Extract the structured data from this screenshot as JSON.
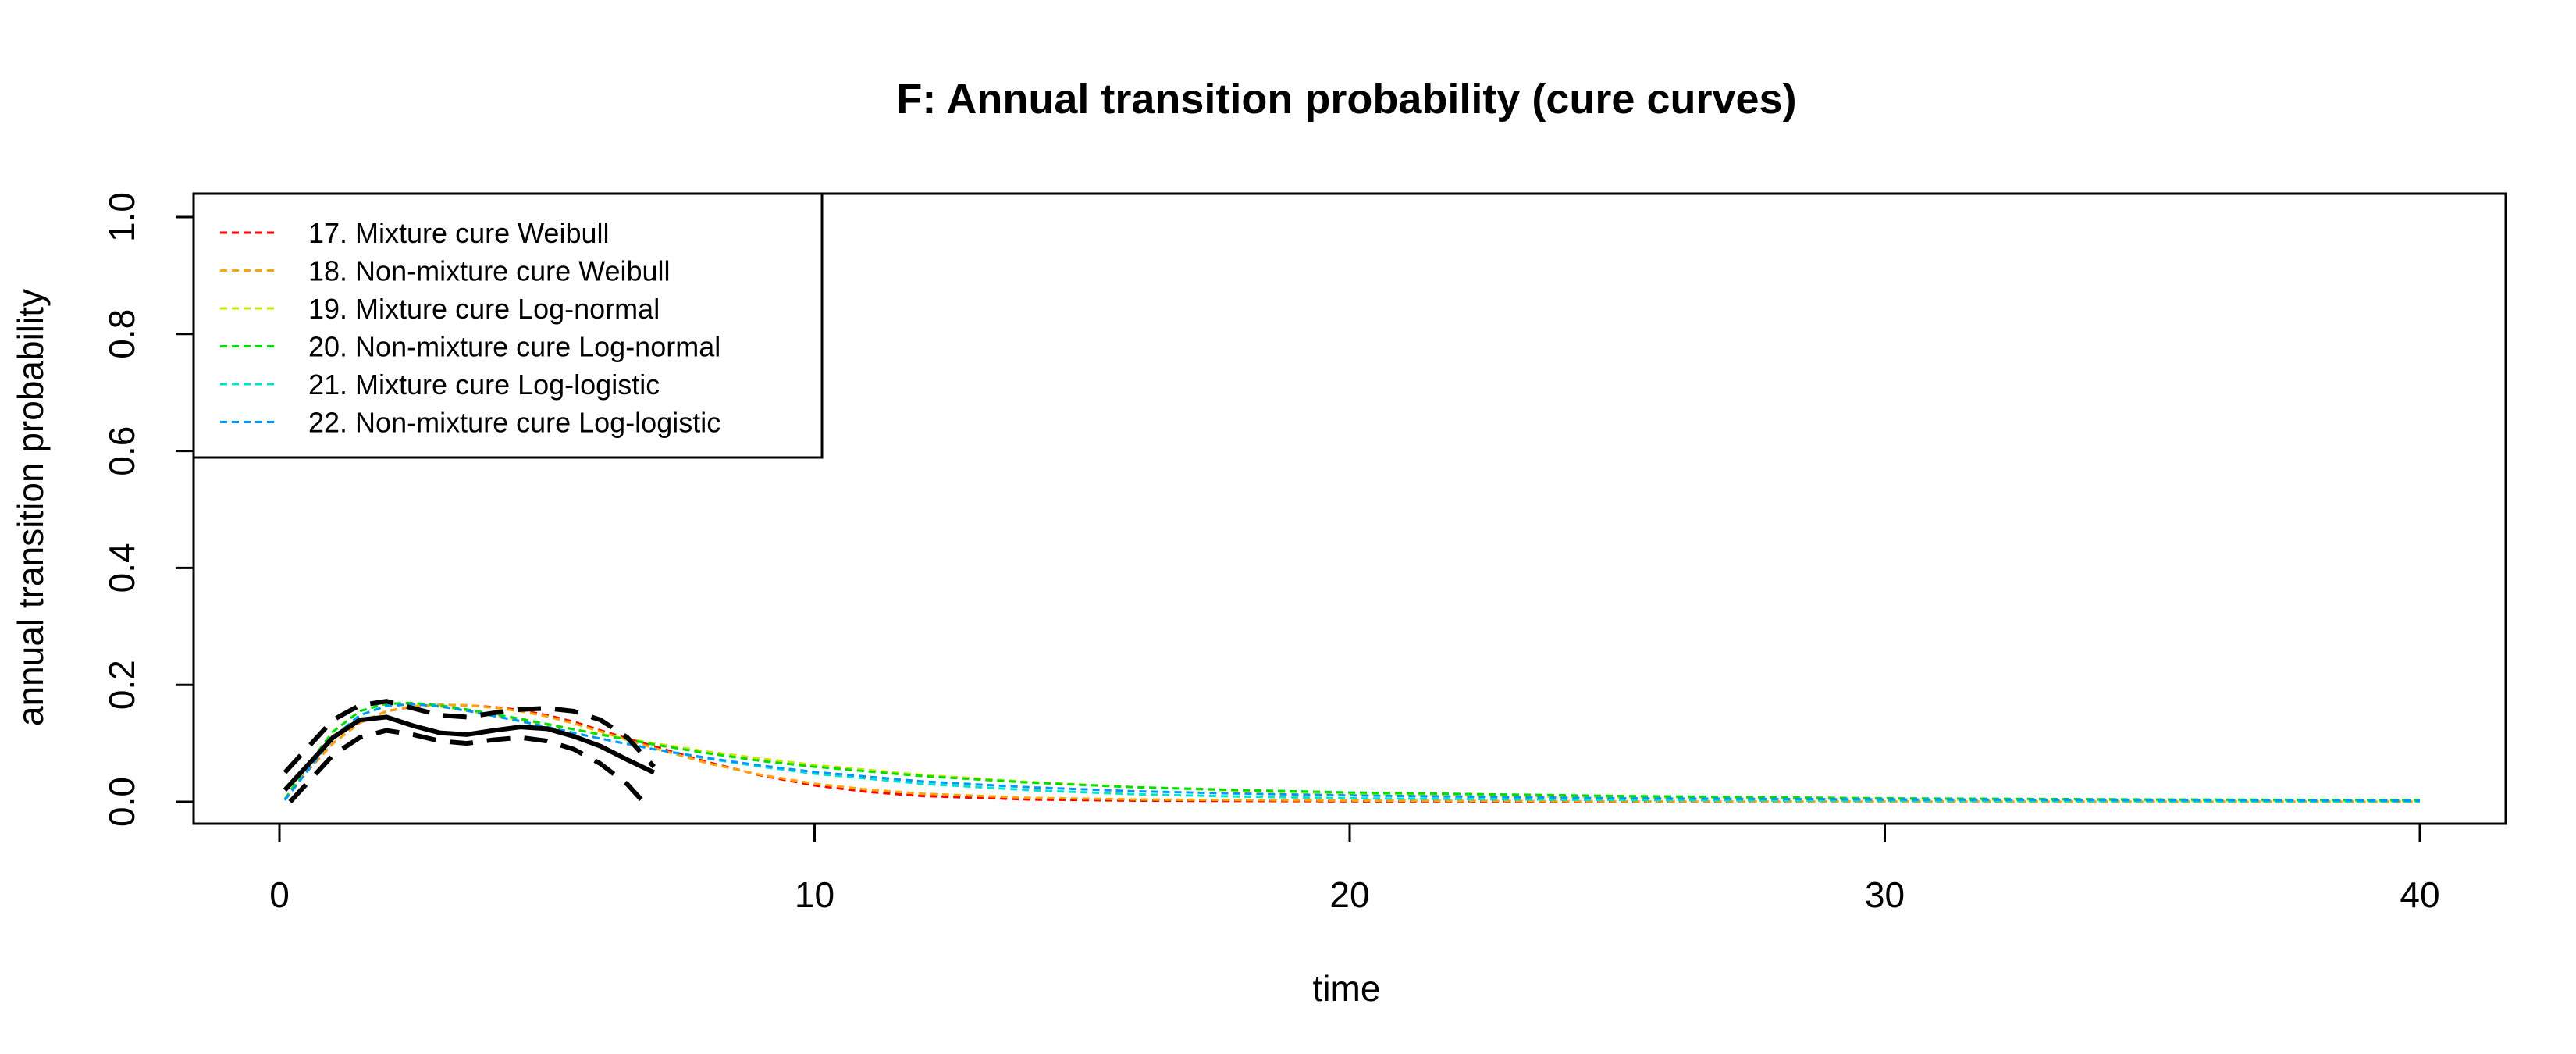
{
  "chart_data": {
    "type": "line",
    "title": "F: Annual transition probability (cure curves)",
    "xlabel": "time",
    "ylabel": "annual transition probability",
    "xlim": [
      0,
      40
    ],
    "ylim": [
      0,
      1
    ],
    "x_ticks": [
      "0",
      "10",
      "20",
      "30",
      "40"
    ],
    "y_ticks": [
      "0.0",
      "0.2",
      "0.4",
      "0.6",
      "0.8",
      "1.0"
    ],
    "legend_position": "top-left",
    "series": [
      {
        "name": "17. Mixture cure Weibull",
        "color": "#FF0000",
        "x": [
          0.1,
          0.5,
          1,
          1.5,
          2,
          2.5,
          3,
          3.5,
          4,
          4.5,
          5,
          5.5,
          6,
          7,
          8,
          9,
          10,
          11,
          12,
          14,
          16,
          20,
          25,
          30,
          35,
          40
        ],
        "y": [
          0.005,
          0.05,
          0.1,
          0.135,
          0.155,
          0.163,
          0.166,
          0.165,
          0.162,
          0.157,
          0.148,
          0.137,
          0.122,
          0.095,
          0.068,
          0.045,
          0.028,
          0.017,
          0.01,
          0.004,
          0.002,
          0.001,
          0.0005,
          0.0003,
          0.0002,
          0.0001
        ]
      },
      {
        "name": "18. Non-mixture cure Weibull",
        "color": "#FFA500",
        "x": [
          0.1,
          0.5,
          1,
          1.5,
          2,
          2.5,
          3,
          3.5,
          4,
          4.5,
          5,
          5.5,
          6,
          7,
          8,
          9,
          10,
          11,
          12,
          14,
          16,
          20,
          25,
          30,
          35,
          40
        ],
        "y": [
          0.005,
          0.05,
          0.1,
          0.135,
          0.155,
          0.164,
          0.166,
          0.165,
          0.161,
          0.155,
          0.146,
          0.134,
          0.12,
          0.092,
          0.066,
          0.046,
          0.031,
          0.021,
          0.014,
          0.007,
          0.004,
          0.002,
          0.001,
          0.0005,
          0.0003,
          0.0002
        ]
      },
      {
        "name": "19. Mixture cure Log-normal",
        "color": "#C8E600",
        "x": [
          0.1,
          0.5,
          1,
          1.5,
          2,
          2.5,
          3,
          3.5,
          4,
          4.5,
          5,
          5.5,
          6,
          7,
          8,
          9,
          10,
          12,
          14,
          16,
          18,
          20,
          25,
          30,
          35,
          40
        ],
        "y": [
          0.004,
          0.06,
          0.12,
          0.155,
          0.168,
          0.168,
          0.163,
          0.156,
          0.148,
          0.14,
          0.132,
          0.124,
          0.116,
          0.1,
          0.086,
          0.074,
          0.063,
          0.046,
          0.034,
          0.025,
          0.019,
          0.014,
          0.007,
          0.004,
          0.002,
          0.001
        ]
      },
      {
        "name": "20. Non-mixture cure Log-normal",
        "color": "#00DD00",
        "x": [
          0.1,
          0.5,
          1,
          1.5,
          2,
          2.5,
          3,
          3.5,
          4,
          4.5,
          5,
          5.5,
          6,
          7,
          8,
          9,
          10,
          12,
          14,
          16,
          18,
          20,
          25,
          30,
          35,
          40
        ],
        "y": [
          0.004,
          0.06,
          0.12,
          0.155,
          0.168,
          0.169,
          0.165,
          0.158,
          0.15,
          0.142,
          0.133,
          0.124,
          0.115,
          0.098,
          0.083,
          0.07,
          0.06,
          0.044,
          0.033,
          0.025,
          0.02,
          0.016,
          0.01,
          0.006,
          0.004,
          0.003
        ]
      },
      {
        "name": "21. Mixture cure Log-logistic",
        "color": "#00E5C8",
        "x": [
          0.1,
          0.5,
          1,
          1.5,
          2,
          2.5,
          3,
          3.5,
          4,
          4.5,
          5,
          5.5,
          6,
          7,
          8,
          9,
          10,
          12,
          14,
          16,
          18,
          20,
          25,
          30,
          35,
          40
        ],
        "y": [
          0.003,
          0.05,
          0.11,
          0.148,
          0.164,
          0.167,
          0.163,
          0.156,
          0.147,
          0.138,
          0.128,
          0.118,
          0.108,
          0.09,
          0.074,
          0.06,
          0.048,
          0.031,
          0.02,
          0.013,
          0.009,
          0.006,
          0.003,
          0.0015,
          0.001,
          0.0005
        ]
      },
      {
        "name": "22. Non-mixture cure Log-logistic",
        "color": "#0096FF",
        "x": [
          0.1,
          0.5,
          1,
          1.5,
          2,
          2.5,
          3,
          3.5,
          4,
          4.5,
          5,
          5.5,
          6,
          7,
          8,
          9,
          10,
          12,
          14,
          16,
          18,
          20,
          25,
          30,
          35,
          40
        ],
        "y": [
          0.003,
          0.05,
          0.11,
          0.148,
          0.164,
          0.167,
          0.163,
          0.156,
          0.147,
          0.138,
          0.128,
          0.118,
          0.108,
          0.09,
          0.075,
          0.062,
          0.051,
          0.035,
          0.025,
          0.018,
          0.014,
          0.011,
          0.006,
          0.004,
          0.003,
          0.002
        ]
      }
    ],
    "observed": {
      "color": "#000000",
      "estimate": {
        "x": [
          0.1,
          0.5,
          1,
          1.5,
          2,
          2.5,
          3,
          3.5,
          4,
          4.5,
          5,
          5.5,
          6,
          6.5,
          7
        ],
        "y": [
          0.02,
          0.06,
          0.11,
          0.14,
          0.145,
          0.13,
          0.118,
          0.115,
          0.122,
          0.128,
          0.125,
          0.112,
          0.095,
          0.072,
          0.05
        ]
      },
      "upper": {
        "x": [
          0.1,
          0.5,
          1,
          1.5,
          2,
          2.5,
          3,
          3.5,
          4,
          4.5,
          5,
          5.5,
          6,
          6.5,
          7
        ],
        "y": [
          0.05,
          0.09,
          0.14,
          0.165,
          0.172,
          0.16,
          0.148,
          0.145,
          0.152,
          0.158,
          0.16,
          0.155,
          0.14,
          0.11,
          0.06
        ]
      },
      "lower": {
        "x": [
          0.2,
          0.5,
          1,
          1.5,
          2,
          2.5,
          3,
          3.5,
          4,
          4.5,
          5,
          5.5,
          6,
          6.5,
          6.8
        ],
        "y": [
          0.0,
          0.03,
          0.08,
          0.11,
          0.122,
          0.115,
          0.104,
          0.1,
          0.106,
          0.11,
          0.104,
          0.09,
          0.065,
          0.03,
          0.0
        ]
      }
    }
  }
}
